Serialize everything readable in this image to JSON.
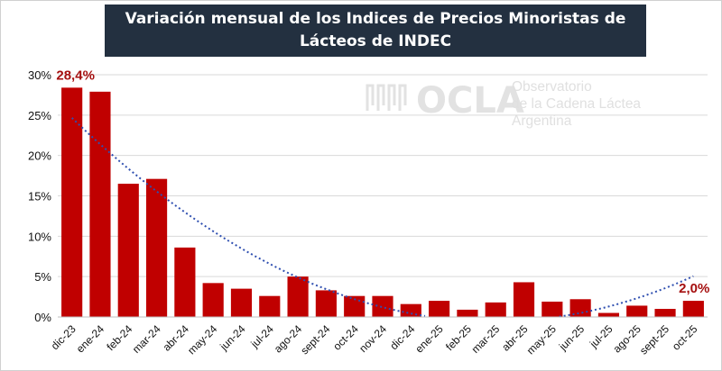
{
  "chart_data": {
    "type": "bar",
    "title": "Variación mensual de los Indices de Precios Minoristas de Lácteos de INDEC",
    "categories": [
      "dic-23",
      "ene-24",
      "feb-24",
      "mar-24",
      "abr-24",
      "may-24",
      "jun-24",
      "jul-24",
      "ago-24",
      "sept-24",
      "oct-24",
      "nov-24",
      "dic-24",
      "ene-25",
      "feb-25",
      "mar-25",
      "abr-25",
      "may-25",
      "jun-25",
      "jul-25",
      "ago-25",
      "sept-25",
      "oct-25"
    ],
    "values": [
      28.4,
      27.9,
      16.5,
      17.1,
      8.6,
      4.2,
      3.5,
      2.6,
      5.0,
      3.3,
      2.6,
      2.6,
      1.6,
      2.0,
      0.9,
      1.8,
      4.3,
      1.9,
      2.2,
      0.5,
      1.4,
      1.0,
      2.0
    ],
    "ylim": [
      0,
      30
    ],
    "yticks": [
      0,
      5,
      10,
      15,
      20,
      25,
      30
    ],
    "ytick_labels": [
      "0%",
      "5%",
      "10%",
      "15%",
      "20%",
      "25%",
      "30%"
    ],
    "xlabel": "",
    "ylabel": "",
    "grid": "horizontal",
    "bar_color": "#c00000",
    "trendline": {
      "type": "polynomial",
      "color": "#2f4fb0",
      "style": "dotted"
    },
    "annotations": [
      {
        "category": "dic-23",
        "text": "28,4%"
      },
      {
        "category": "oct-25",
        "text": "2,0%"
      }
    ]
  },
  "watermark": {
    "logo": "OCLA",
    "lines": [
      "Observatorio",
      "de la Cadena Láctea",
      "Argentina"
    ]
  }
}
